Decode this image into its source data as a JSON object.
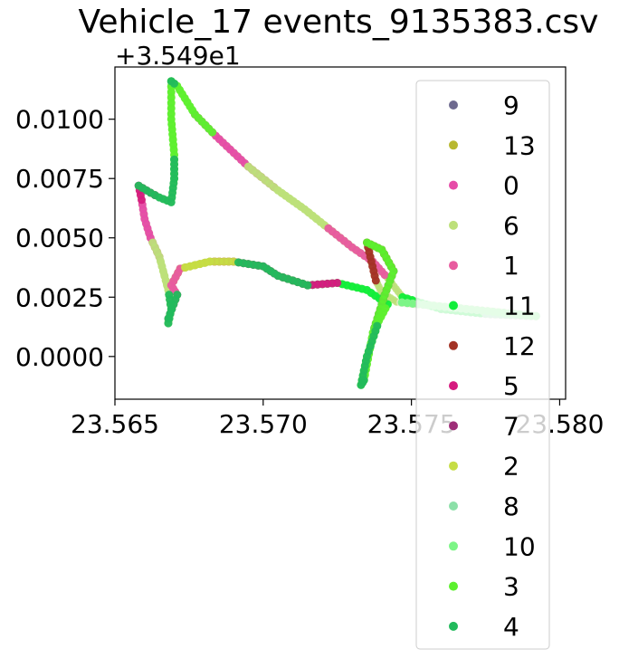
{
  "chart_data": {
    "type": "scatter",
    "title": "Vehicle_17 events_9135383.csv",
    "offset_text": "+3.549e1",
    "xlabel": "",
    "ylabel": "",
    "xlim": [
      23.565,
      23.5802
    ],
    "ylim": [
      -0.0018,
      0.0122
    ],
    "x_ticks": [
      23.565,
      23.57,
      23.575,
      23.58
    ],
    "x_tick_labels": [
      "23.565",
      "23.570",
      "23.575",
      "23.580"
    ],
    "y_ticks": [
      0.0,
      0.0025,
      0.005,
      0.0075,
      0.01
    ],
    "y_tick_labels": [
      "0.0000",
      "0.0025",
      "0.0050",
      "0.0075",
      "0.0100"
    ],
    "legend_position": "right",
    "route": [
      [
        23.5669,
        0.0116
      ],
      [
        23.5671,
        0.0114
      ],
      [
        23.5677,
        0.0102
      ],
      [
        23.5684,
        0.0093
      ],
      [
        23.5695,
        0.008
      ],
      [
        23.5705,
        0.007
      ],
      [
        23.5714,
        0.0062
      ],
      [
        23.5722,
        0.0054
      ],
      [
        23.573,
        0.0046
      ],
      [
        23.5737,
        0.004
      ],
      [
        23.5742,
        0.0033
      ],
      [
        23.5747,
        0.0025
      ],
      [
        23.576,
        0.002
      ],
      [
        23.5775,
        0.0018
      ],
      [
        23.5792,
        0.0017
      ],
      [
        23.5745,
        0.0023
      ],
      [
        23.574,
        0.0027
      ],
      [
        23.5738,
        0.0032
      ],
      [
        23.5735,
        0.0048
      ],
      [
        23.574,
        0.0045
      ],
      [
        23.5744,
        0.0036
      ],
      [
        23.5741,
        0.0026
      ],
      [
        23.5737,
        0.001
      ],
      [
        23.5734,
        -0.001
      ],
      [
        23.5733,
        -0.0012
      ],
      [
        23.5735,
        0.0
      ],
      [
        23.5739,
        0.0015
      ],
      [
        23.5742,
        0.0022
      ],
      [
        23.5735,
        0.0028
      ],
      [
        23.5725,
        0.0031
      ],
      [
        23.5715,
        0.003
      ],
      [
        23.5705,
        0.0034
      ],
      [
        23.57,
        0.0038
      ],
      [
        23.569,
        0.004
      ],
      [
        23.5682,
        0.004
      ],
      [
        23.5672,
        0.0037
      ],
      [
        23.5669,
        0.003
      ],
      [
        23.5671,
        0.0026
      ],
      [
        23.5668,
        0.0016
      ],
      [
        23.5668,
        0.0014
      ],
      [
        23.5669,
        0.002
      ],
      [
        23.5668,
        0.0028
      ],
      [
        23.5665,
        0.0042
      ],
      [
        23.5662,
        0.005
      ],
      [
        23.566,
        0.0058
      ],
      [
        23.5659,
        0.0066
      ],
      [
        23.5658,
        0.0072
      ],
      [
        23.5662,
        0.0069
      ],
      [
        23.5665,
        0.0067
      ],
      [
        23.5669,
        0.0065
      ],
      [
        23.567,
        0.0075
      ],
      [
        23.567,
        0.0085
      ],
      [
        23.5669,
        0.01
      ],
      [
        23.5669,
        0.0116
      ]
    ],
    "series": [
      {
        "name": "9",
        "color": "#6e6a8f",
        "segments": [
          [
            12,
            14
          ]
        ]
      },
      {
        "name": "13",
        "color": "#b8b830",
        "segments": [
          [
            33,
            36
          ]
        ]
      },
      {
        "name": "0",
        "color": "#e64ca8",
        "segments": [
          [
            2,
            5
          ],
          [
            42,
            45
          ]
        ]
      },
      {
        "name": "6",
        "color": "#bde07a",
        "segments": [
          [
            4,
            8
          ],
          [
            39,
            43
          ]
        ]
      },
      {
        "name": "1",
        "color": "#e85b9f",
        "segments": [
          [
            7,
            10
          ],
          [
            35,
            39
          ]
        ]
      },
      {
        "name": "11",
        "color": "#10ee3a",
        "segments": [
          [
            11,
            13
          ],
          [
            27,
            31
          ]
        ]
      },
      {
        "name": "12",
        "color": "#a33225",
        "segments": [
          [
            17,
            20
          ]
        ]
      },
      {
        "name": "5",
        "color": "#d61a7f",
        "segments": [
          [
            29,
            34
          ],
          [
            45,
            48
          ]
        ]
      },
      {
        "name": "7",
        "color": "#9e2e78",
        "segments": [
          [
            20,
            22
          ]
        ]
      },
      {
        "name": "2",
        "color": "#c6dd45",
        "segments": [
          [
            33,
            35
          ]
        ]
      },
      {
        "name": "8",
        "color": "#8ce0a8",
        "segments": [
          [
            13,
            15
          ]
        ]
      },
      {
        "name": "10",
        "color": "#7cf586",
        "segments": [
          [
            14,
            15
          ]
        ]
      },
      {
        "name": "3",
        "color": "#5cf02e",
        "segments": [
          [
            0,
            3
          ],
          [
            18,
            27
          ],
          [
            50,
            53
          ]
        ]
      },
      {
        "name": "4",
        "color": "#22ba5c",
        "segments": [
          [
            23,
            26
          ],
          [
            30,
            33
          ],
          [
            37,
            41
          ],
          [
            46,
            51
          ],
          [
            0,
            1
          ]
        ]
      }
    ]
  }
}
